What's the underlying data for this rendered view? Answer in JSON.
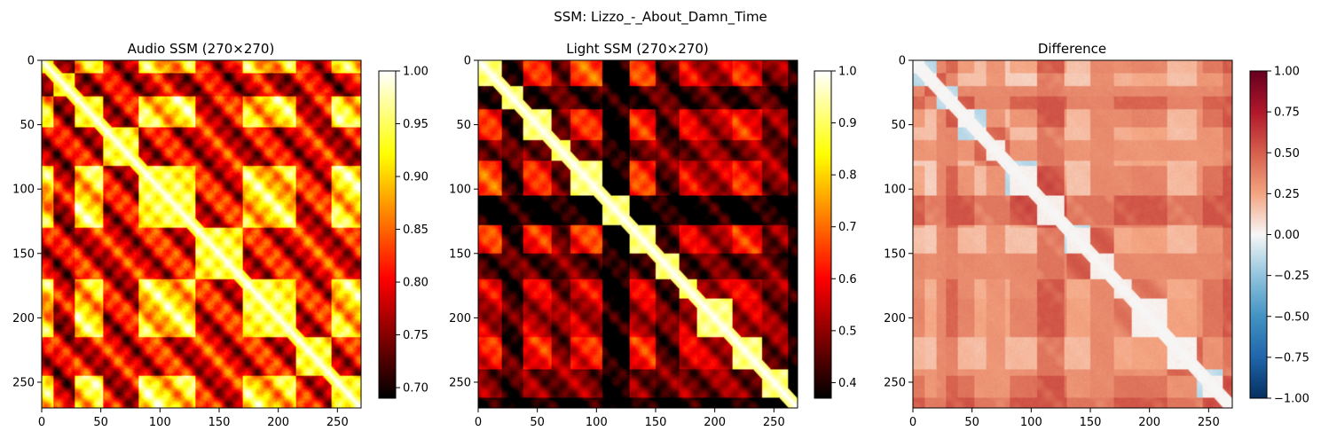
{
  "figure": {
    "suptitle": "SSM: Lizzo_-_About_Damn_Time"
  },
  "chart_data": [
    {
      "type": "heatmap",
      "title": "Audio SSM (270×270)",
      "size": 270,
      "colormap": "hot",
      "xlim": [
        0,
        270
      ],
      "ylim": [
        270,
        0
      ],
      "xticks": [
        0,
        50,
        100,
        150,
        200,
        250
      ],
      "yticks": [
        0,
        50,
        100,
        150,
        200,
        250
      ],
      "colorbar": {
        "min": 0.69,
        "max": 1.0,
        "ticks": [
          "0.70",
          "0.75",
          "0.80",
          "0.85",
          "0.90",
          "0.95",
          "1.00"
        ],
        "tick_values": [
          0.7,
          0.75,
          0.8,
          0.85,
          0.9,
          0.95,
          1.0
        ]
      },
      "sections": [
        0,
        10,
        28,
        52,
        82,
        130,
        170,
        215,
        245,
        270
      ],
      "section_levels": [
        0.9,
        0.78,
        0.92,
        0.79,
        0.93,
        0.8,
        0.91,
        0.8,
        0.92
      ]
    },
    {
      "type": "heatmap",
      "title": "Light SSM (270×270)",
      "size": 270,
      "colormap": "hot",
      "xlim": [
        0,
        270
      ],
      "ylim": [
        270,
        0
      ],
      "xticks": [
        0,
        50,
        100,
        150,
        200,
        250
      ],
      "yticks": [
        0,
        50,
        100,
        150,
        200,
        250
      ],
      "colorbar": {
        "min": 0.37,
        "max": 1.0,
        "ticks": [
          "0.4",
          "0.5",
          "0.6",
          "0.7",
          "0.8",
          "0.9",
          "1.0"
        ],
        "tick_values": [
          0.4,
          0.5,
          0.6,
          0.7,
          0.8,
          0.9,
          1.0
        ]
      },
      "sections": [
        0,
        20,
        38,
        62,
        78,
        105,
        128,
        150,
        170,
        185,
        215,
        240,
        262,
        270
      ],
      "section_levels": [
        0.78,
        0.5,
        0.66,
        0.55,
        0.7,
        0.45,
        0.68,
        0.52,
        0.62,
        0.6,
        0.66,
        0.55,
        0.45
      ]
    },
    {
      "type": "heatmap",
      "title": "Difference",
      "size": 270,
      "colormap": "RdBu_r",
      "xlim": [
        0,
        270
      ],
      "ylim": [
        270,
        0
      ],
      "xticks": [
        0,
        50,
        100,
        150,
        200,
        250
      ],
      "yticks": [
        0,
        50,
        100,
        150,
        200,
        250
      ],
      "colorbar": {
        "min": -1.0,
        "max": 1.0,
        "ticks": [
          "1.00",
          "0.75",
          "0.50",
          "0.25",
          "0.00",
          "−0.25",
          "−0.50",
          "−0.75",
          "−1.00"
        ],
        "tick_values": [
          1.0,
          0.75,
          0.5,
          0.25,
          0.0,
          -0.25,
          -0.5,
          -0.75,
          -1.0
        ]
      }
    }
  ]
}
